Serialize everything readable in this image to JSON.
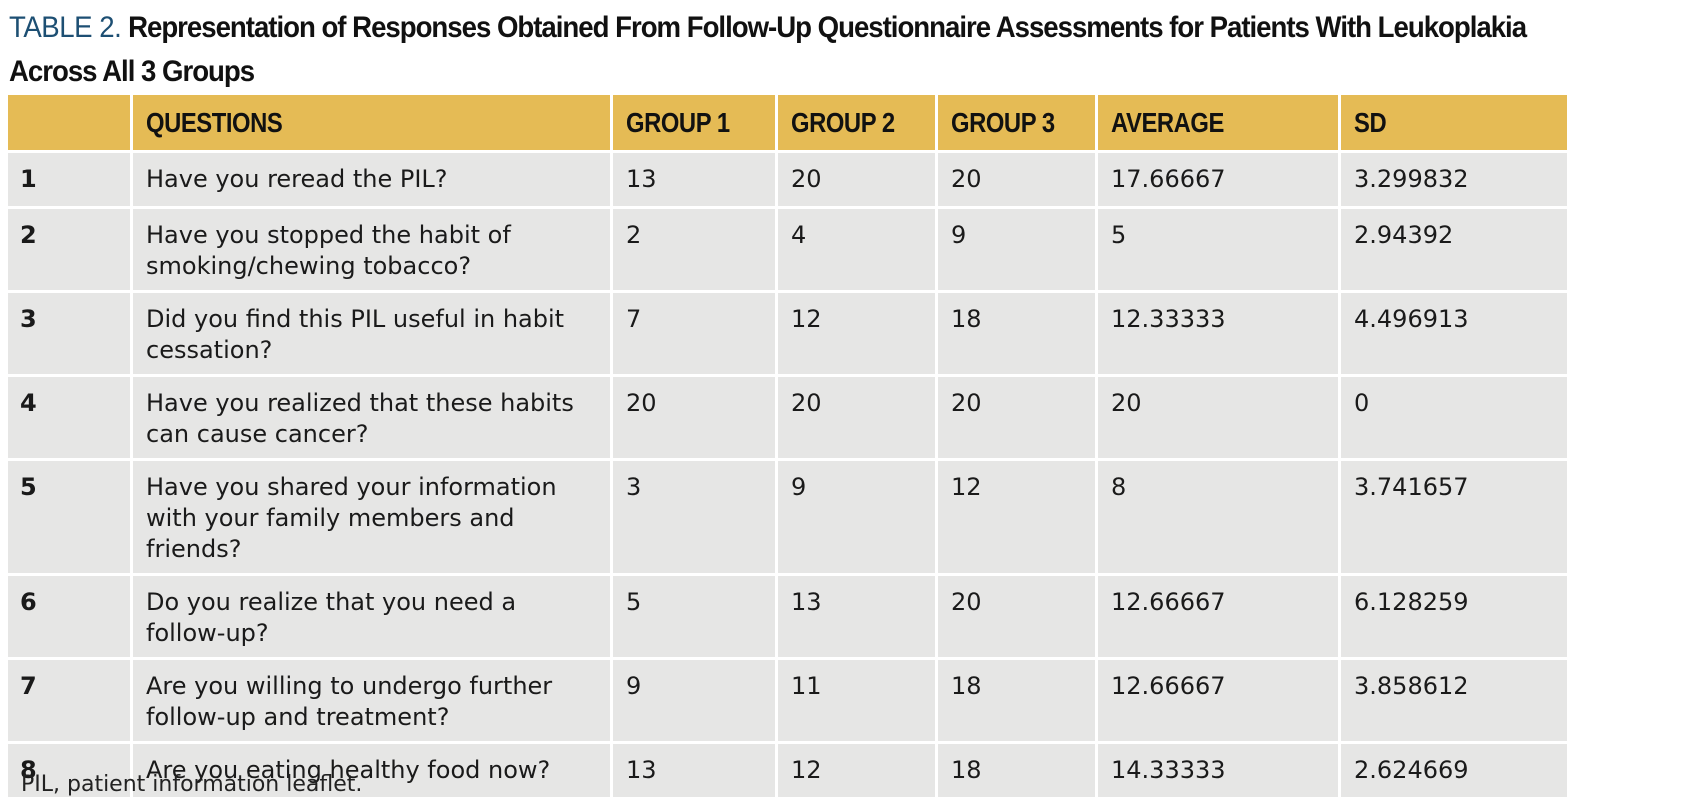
{
  "title": {
    "label": "TABLE 2.",
    "text": "Representation of Responses Obtained From Follow-Up Questionnaire Assessments for Patients With Leukoplakia Across All 3 Groups"
  },
  "table": {
    "headers": [
      "",
      "QUESTIONS",
      "GROUP 1",
      "GROUP 2",
      "GROUP 3",
      "AVERAGE",
      "SD"
    ],
    "rows": [
      {
        "num": "1",
        "question": "Have you reread the PIL?",
        "group1": "13",
        "group2": "20",
        "group3": "20",
        "average": "17.66667",
        "sd": "3.299832"
      },
      {
        "num": "2",
        "question": "Have you stopped the habit of smoking/chewing tobacco?",
        "group1": "2",
        "group2": "4",
        "group3": "9",
        "average": "5",
        "sd": "2.94392"
      },
      {
        "num": "3",
        "question": "Did you find this PIL useful in habit cessation?",
        "group1": "7",
        "group2": "12",
        "group3": "18",
        "average": "12.33333",
        "sd": "4.496913"
      },
      {
        "num": "4",
        "question": "Have you realized that these habits can cause cancer?",
        "group1": "20",
        "group2": "20",
        "group3": "20",
        "average": "20",
        "sd": "0"
      },
      {
        "num": "5",
        "question": "Have you shared your information with your family members and friends?",
        "group1": "3",
        "group2": "9",
        "group3": "12",
        "average": "8",
        "sd": "3.741657"
      },
      {
        "num": "6",
        "question": "Do you realize that you need a follow-up?",
        "group1": "5",
        "group2": "13",
        "group3": "20",
        "average": "12.66667",
        "sd": "6.128259"
      },
      {
        "num": "7",
        "question": "Are you willing to undergo further follow-up and treatment?",
        "group1": "9",
        "group2": "11",
        "group3": "18",
        "average": "12.66667",
        "sd": "3.858612"
      },
      {
        "num": "8",
        "question": "Are you eating healthy food now?",
        "group1": "13",
        "group2": "12",
        "group3": "18",
        "average": "14.33333",
        "sd": "2.624669"
      }
    ]
  },
  "footnote": "PIL, patient information leaflet.",
  "colors": {
    "header_bg": "#e5bb55",
    "cell_bg": "#e6e6e5",
    "title_label": "#1d4f73"
  }
}
